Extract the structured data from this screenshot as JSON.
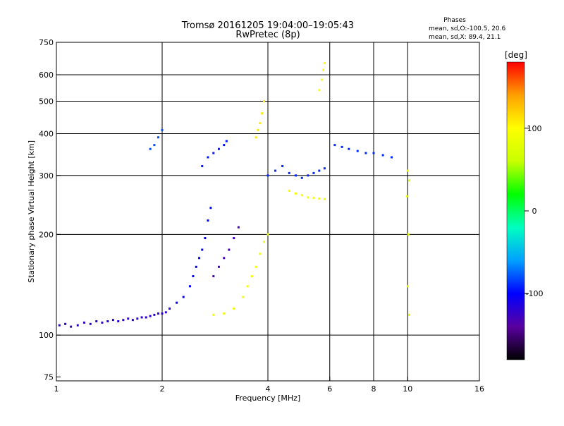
{
  "chart_data": {
    "type": "scatter",
    "title": "Tromsø 20161205 19:04:00–19:05:43",
    "subtitle": "RwPretec (8p)",
    "xlabel": "Frequency [MHz]",
    "ylabel": "Stationary phase Virtual Height [km]",
    "x_scale": "log",
    "y_scale": "log",
    "xlim": [
      1,
      16
    ],
    "ylim": [
      73,
      750
    ],
    "x_ticks": [
      1,
      2,
      4,
      6,
      8,
      10,
      16
    ],
    "x_tick_labels": [
      "1",
      "2",
      "4",
      "6",
      "8",
      "10",
      "16"
    ],
    "x_gridlines": [
      2,
      4,
      6,
      8,
      10
    ],
    "y_ticks": [
      75,
      100,
      200,
      300,
      400,
      500,
      600,
      750
    ],
    "y_tick_labels": [
      "75",
      "100",
      "200",
      "300",
      "400",
      "500",
      "600",
      "750"
    ],
    "y_gridlines": [
      100,
      200,
      300,
      400,
      500,
      600
    ],
    "grid": true,
    "legend": {
      "title": "Phases",
      "entries": [
        "mean, sd,O:-100.5, 20.6",
        "mean, sd,X: 89.4, 21.1"
      ],
      "placement": "top-right"
    },
    "colorbar": {
      "label": "[deg]",
      "min": -180,
      "max": 180,
      "ticks": [
        100,
        0,
        -100
      ],
      "tick_labels": [
        "100",
        "0",
        "-100"
      ],
      "colors": [
        "#000000",
        "#5a00a0",
        "#0000ff",
        "#00a0ff",
        "#00ffc0",
        "#00ff00",
        "#c8ff00",
        "#ffff00",
        "#ffa000",
        "#ff0000"
      ]
    },
    "series": [
      {
        "mode": "O-trace",
        "phase_deg": -120,
        "points": [
          [
            1.02,
            107
          ],
          [
            1.06,
            108
          ],
          [
            1.1,
            106
          ],
          [
            1.15,
            107
          ],
          [
            1.2,
            109
          ],
          [
            1.25,
            108
          ],
          [
            1.3,
            110
          ],
          [
            1.35,
            109
          ],
          [
            1.4,
            110
          ],
          [
            1.45,
            111
          ],
          [
            1.5,
            110
          ],
          [
            1.55,
            111
          ],
          [
            1.6,
            112
          ],
          [
            1.65,
            111
          ],
          [
            1.7,
            112
          ],
          [
            1.75,
            113
          ],
          [
            1.8,
            113
          ],
          [
            1.85,
            114
          ],
          [
            1.9,
            115
          ],
          [
            1.95,
            116
          ],
          [
            2.0,
            116
          ],
          [
            2.05,
            117
          ],
          [
            2.1,
            120
          ]
        ]
      },
      {
        "mode": "O-trace",
        "phase_deg": -100,
        "points": [
          [
            2.2,
            125
          ],
          [
            2.3,
            130
          ],
          [
            2.4,
            140
          ],
          [
            2.45,
            150
          ],
          [
            2.5,
            160
          ],
          [
            2.55,
            170
          ],
          [
            2.6,
            180
          ],
          [
            2.65,
            195
          ],
          [
            2.7,
            220
          ],
          [
            2.75,
            240
          ]
        ]
      },
      {
        "mode": "O-trace",
        "phase_deg": -130,
        "points": [
          [
            2.8,
            150
          ],
          [
            2.9,
            160
          ],
          [
            3.0,
            170
          ],
          [
            3.1,
            180
          ],
          [
            3.2,
            195
          ],
          [
            3.3,
            210
          ]
        ]
      },
      {
        "mode": "X-trace",
        "phase_deg": 90,
        "points": [
          [
            2.8,
            115
          ],
          [
            3.0,
            116
          ],
          [
            3.2,
            120
          ],
          [
            3.4,
            130
          ],
          [
            3.5,
            140
          ],
          [
            3.6,
            150
          ],
          [
            3.7,
            160
          ],
          [
            3.8,
            175
          ],
          [
            3.9,
            190
          ],
          [
            4.0,
            200
          ]
        ]
      },
      {
        "mode": "O-trace",
        "phase_deg": -95,
        "points": [
          [
            2.6,
            320
          ],
          [
            2.7,
            340
          ],
          [
            2.8,
            350
          ],
          [
            2.9,
            360
          ],
          [
            3.0,
            370
          ],
          [
            3.05,
            380
          ]
        ]
      },
      {
        "mode": "X-trace",
        "phase_deg": 110,
        "points": [
          [
            3.7,
            390
          ],
          [
            3.75,
            410
          ],
          [
            3.8,
            430
          ],
          [
            3.85,
            460
          ],
          [
            3.9,
            500
          ]
        ]
      },
      {
        "mode": "O-trace",
        "phase_deg": -90,
        "points": [
          [
            4.0,
            300
          ],
          [
            4.2,
            310
          ],
          [
            4.4,
            320
          ],
          [
            4.6,
            305
          ],
          [
            4.8,
            300
          ],
          [
            5.0,
            295
          ],
          [
            5.2,
            300
          ],
          [
            5.4,
            305
          ],
          [
            5.6,
            310
          ],
          [
            5.8,
            315
          ]
        ]
      },
      {
        "mode": "X-trace",
        "phase_deg": 95,
        "points": [
          [
            4.6,
            270
          ],
          [
            4.8,
            265
          ],
          [
            5.0,
            262
          ],
          [
            5.2,
            258
          ],
          [
            5.4,
            257
          ],
          [
            5.6,
            256
          ],
          [
            5.8,
            255
          ]
        ]
      },
      {
        "mode": "X-trace",
        "phase_deg": 100,
        "points": [
          [
            5.6,
            540
          ],
          [
            5.7,
            580
          ],
          [
            5.75,
            620
          ],
          [
            5.8,
            650
          ]
        ]
      },
      {
        "mode": "O-trace",
        "phase_deg": -90,
        "points": [
          [
            6.2,
            370
          ],
          [
            6.5,
            365
          ],
          [
            6.8,
            360
          ],
          [
            7.2,
            355
          ],
          [
            7.6,
            350
          ],
          [
            8.0,
            350
          ],
          [
            8.5,
            345
          ],
          [
            9.0,
            340
          ]
        ]
      },
      {
        "mode": "O-trace",
        "phase_deg": -80,
        "points": [
          [
            1.9,
            370
          ],
          [
            1.95,
            390
          ],
          [
            2.0,
            410
          ],
          [
            1.85,
            360
          ]
        ]
      },
      {
        "mode": "X-trace",
        "phase_deg": 80,
        "points": [
          [
            10.0,
            310
          ],
          [
            10.1,
            290
          ],
          [
            9.95,
            260
          ],
          [
            10.05,
            200
          ],
          [
            10.0,
            140
          ],
          [
            10.1,
            115
          ]
        ]
      }
    ]
  }
}
